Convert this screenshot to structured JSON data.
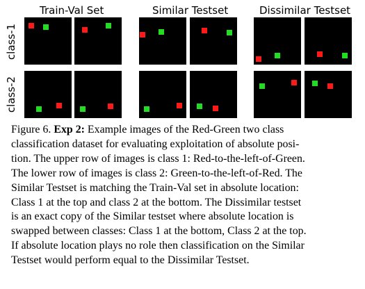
{
  "figure": {
    "sets": [
      {
        "title": "Train-Val Set"
      },
      {
        "title": "Similar Testset"
      },
      {
        "title": "Dissimilar Testset"
      }
    ],
    "rows": [
      {
        "label": "class-1"
      },
      {
        "label": "class-2"
      }
    ],
    "colors": {
      "red": "#ff1a1a",
      "green": "#22dd22",
      "panel_bg": "#000000"
    },
    "panels": [
      {
        "set": "Train-Val Set",
        "row": "class-1",
        "index": 1,
        "content": "Red-to-the-left-of-Green"
      },
      {
        "set": "Train-Val Set",
        "row": "class-1",
        "index": 2,
        "content": "Red-to-the-left-of-Green"
      },
      {
        "set": "Similar Testset",
        "row": "class-1",
        "index": 1,
        "content": "Red-to-the-left-of-Green"
      },
      {
        "set": "Similar Testset",
        "row": "class-1",
        "index": 2,
        "content": "Red-to-the-left-of-Green"
      },
      {
        "set": "Dissimilar Testset",
        "row": "class-1",
        "index": 1,
        "content": "Red-to-the-left-of-Green"
      },
      {
        "set": "Dissimilar Testset",
        "row": "class-1",
        "index": 2,
        "content": "Red-to-the-left-of-Green"
      },
      {
        "set": "Train-Val Set",
        "row": "class-2",
        "index": 1,
        "content": "Green-to-the-left-of-Red"
      },
      {
        "set": "Train-Val Set",
        "row": "class-2",
        "index": 2,
        "content": "Green-to-the-left-of-Red"
      },
      {
        "set": "Similar Testset",
        "row": "class-2",
        "index": 1,
        "content": "Green-to-the-left-of-Red"
      },
      {
        "set": "Similar Testset",
        "row": "class-2",
        "index": 2,
        "content": "Green-to-the-left-of-Red"
      },
      {
        "set": "Dissimilar Testset",
        "row": "class-2",
        "index": 1,
        "content": "Green-to-the-left-of-Red"
      },
      {
        "set": "Dissimilar Testset",
        "row": "class-2",
        "index": 2,
        "content": "Green-to-the-left-of-Red"
      }
    ]
  },
  "caption": {
    "prefix": "Figure 6. ",
    "bold": "Exp 2:",
    "lines": [
      " Example images of the Red-Green two class",
      "classification dataset for evaluating exploitation of absolute posi-",
      "tion. The upper row of images is class 1: Red-to-the-left-of-Green.",
      "The lower row of images is class 2: Green-to-the-left-of-Red. The",
      "Similar Testset is matching the Train-Val set in absolute location:",
      "Class 1 at the top and class 2 at the bottom. The Dissimilar testset",
      "is an exact copy of the Similar testset where absolute location is",
      "swapped between classes: Class 1 at the bottom, Class 2 at the top.",
      "If absolute location plays no role then classification on the Similar",
      "Testset would perform equal to the Dissimilar Testset."
    ]
  }
}
